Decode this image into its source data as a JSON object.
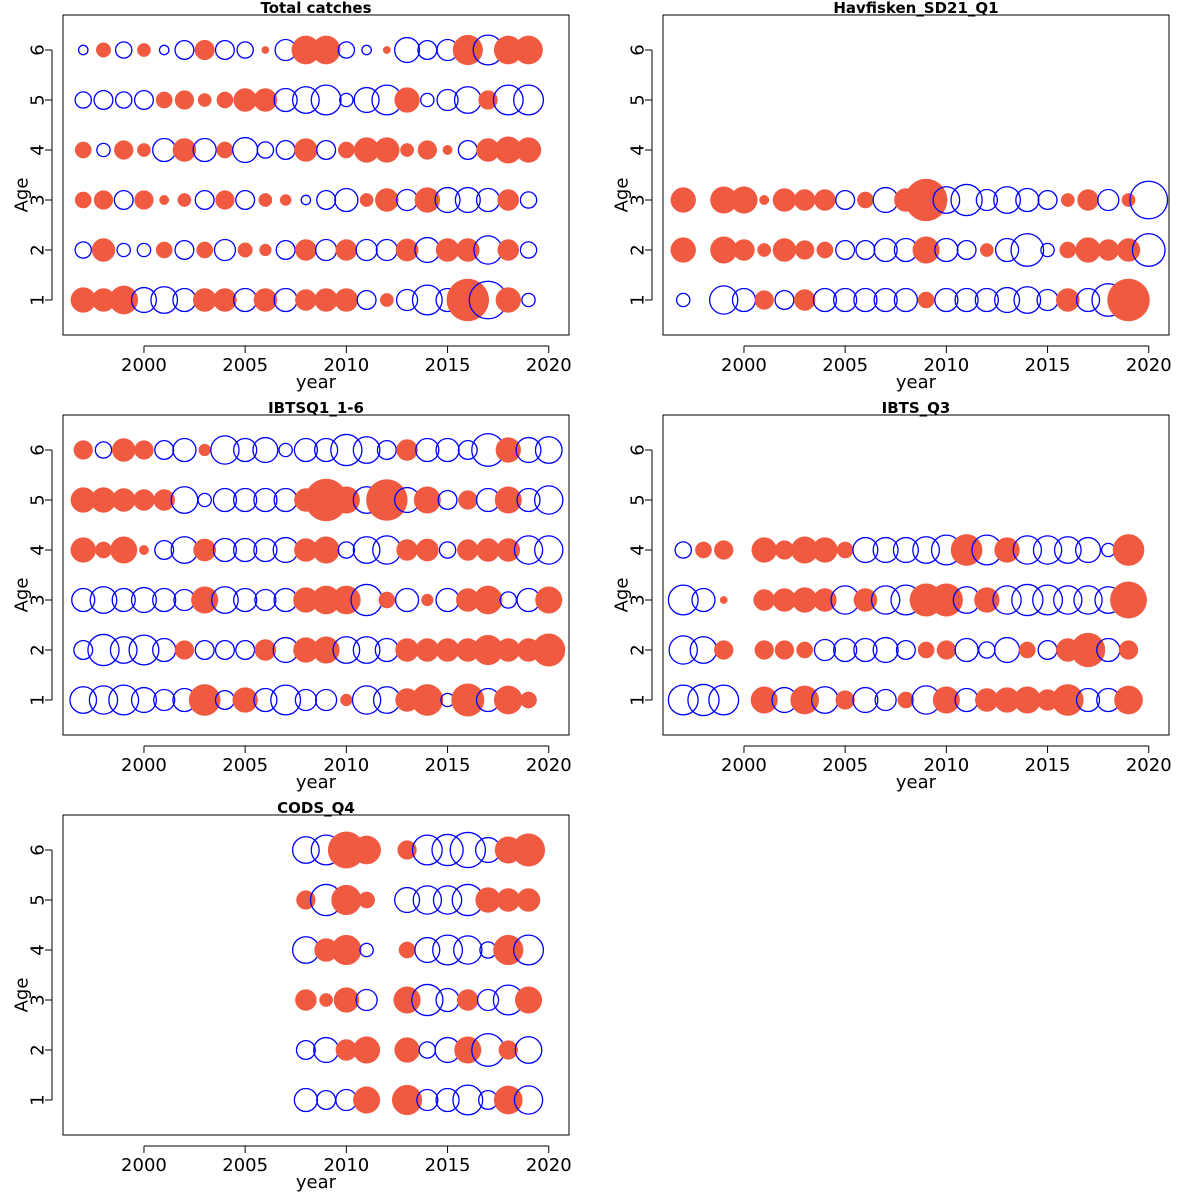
{
  "colors": {
    "positive": "#f05a40",
    "negative": "#0000ff"
  },
  "chart_data": [
    {
      "type": "scatter",
      "title": "Total catches",
      "xlabel": "year",
      "ylabel": "Age",
      "xlim": [
        1996,
        2021
      ],
      "ylim": [
        0.3,
        6.7
      ],
      "xticks": [
        2000,
        2005,
        2010,
        2015,
        2020
      ],
      "yticks": [
        1,
        2,
        3,
        4,
        5,
        6
      ],
      "years": [
        1997,
        1998,
        1999,
        2000,
        2001,
        2002,
        2003,
        2004,
        2005,
        2006,
        2007,
        2008,
        2009,
        2010,
        2011,
        2012,
        2013,
        2014,
        2015,
        2016,
        2017,
        2018,
        2019
      ],
      "residuals_by_age": {
        "1": [
          0.35,
          0.3,
          0.45,
          -0.35,
          -0.4,
          -0.3,
          0.3,
          0.3,
          -0.3,
          0.3,
          -0.3,
          0.25,
          0.3,
          0.3,
          -0.2,
          0.1,
          -0.25,
          -0.5,
          -0.3,
          1.0,
          -0.8,
          0.35,
          -0.1
        ],
        "2": [
          -0.15,
          0.3,
          -0.1,
          -0.1,
          0.15,
          -0.2,
          0.15,
          -0.25,
          0.12,
          0.08,
          -0.2,
          0.25,
          -0.25,
          0.25,
          -0.25,
          -0.25,
          0.28,
          -0.35,
          0.3,
          0.3,
          -0.45,
          0.25,
          -0.15
        ],
        "3": [
          0.15,
          0.2,
          -0.2,
          0.2,
          0.05,
          0.1,
          -0.2,
          0.2,
          -0.2,
          0.1,
          0.07,
          -0.05,
          -0.2,
          -0.3,
          0.1,
          0.3,
          -0.25,
          0.35,
          -0.35,
          -0.35,
          -0.3,
          0.25,
          -0.15
        ],
        "4": [
          0.15,
          -0.1,
          0.2,
          0.1,
          -0.3,
          0.3,
          -0.3,
          0.15,
          -0.35,
          -0.15,
          -0.2,
          0.3,
          -0.2,
          0.15,
          0.35,
          0.35,
          0.1,
          0.2,
          0.05,
          -0.2,
          0.3,
          0.4,
          0.35
        ],
        "5": [
          -0.15,
          -0.2,
          -0.15,
          -0.2,
          0.15,
          0.2,
          0.1,
          0.15,
          0.3,
          0.3,
          -0.3,
          -0.4,
          -0.5,
          -0.1,
          -0.35,
          -0.5,
          0.35,
          -0.1,
          -0.25,
          -0.4,
          0.2,
          -0.5,
          -0.5
        ],
        "6": [
          -0.05,
          0.12,
          -0.15,
          0.1,
          -0.05,
          -0.2,
          0.22,
          -0.2,
          -0.15,
          0.03,
          -0.25,
          0.45,
          0.45,
          -0.15,
          -0.05,
          0.03,
          -0.35,
          -0.2,
          -0.25,
          0.5,
          -0.5,
          0.45,
          0.45
        ]
      }
    },
    {
      "type": "scatter",
      "title": "Havfisken_SD21_Q1",
      "xlabel": "year",
      "ylabel": "Age",
      "xlim": [
        1996,
        2021
      ],
      "ylim": [
        0.3,
        6.7
      ],
      "xticks": [
        2000,
        2005,
        2010,
        2015,
        2020
      ],
      "yticks": [
        1,
        2,
        3,
        4,
        5,
        6
      ],
      "years": [
        1997,
        1999,
        2000,
        2001,
        2002,
        2003,
        2004,
        2005,
        2006,
        2007,
        2008,
        2009,
        2010,
        2011,
        2012,
        2013,
        2014,
        2015,
        2016,
        2017,
        2018,
        2019,
        2020
      ],
      "residuals_by_age": {
        "1": [
          -0.1,
          -0.45,
          -0.3,
          0.2,
          -0.2,
          0.25,
          -0.3,
          -0.3,
          -0.3,
          -0.3,
          -0.3,
          0.15,
          -0.3,
          -0.3,
          -0.3,
          -0.35,
          -0.4,
          -0.25,
          0.3,
          -0.3,
          -0.6,
          1.0,
          null
        ],
        "2": [
          0.35,
          0.4,
          0.25,
          0.1,
          0.3,
          0.2,
          0.15,
          -0.2,
          -0.2,
          -0.3,
          -0.3,
          0.4,
          -0.3,
          -0.2,
          0.1,
          -0.3,
          -0.6,
          -0.1,
          0.15,
          0.35,
          0.25,
          0.3,
          -0.6
        ],
        "3": [
          0.35,
          0.4,
          0.4,
          0.05,
          0.3,
          0.25,
          0.25,
          -0.2,
          0.15,
          -0.35,
          0.3,
          1.0,
          -0.4,
          -0.55,
          -0.25,
          -0.4,
          -0.3,
          -0.2,
          0.1,
          0.25,
          -0.25,
          0.1,
          -0.8
        ]
      }
    },
    {
      "type": "scatter",
      "title": "IBTSQ1_1-6",
      "xlabel": "year",
      "ylabel": "Age",
      "xlim": [
        1996,
        2021
      ],
      "ylim": [
        0.3,
        6.7
      ],
      "xticks": [
        2000,
        2005,
        2010,
        2015,
        2020
      ],
      "yticks": [
        1,
        2,
        3,
        4,
        5,
        6
      ],
      "years": [
        1997,
        1998,
        1999,
        2000,
        2001,
        2002,
        2003,
        2004,
        2005,
        2006,
        2007,
        2008,
        2009,
        2010,
        2011,
        2012,
        2013,
        2014,
        2015,
        2016,
        2017,
        2018,
        2019,
        2020
      ],
      "residuals_by_age": {
        "1": [
          -0.4,
          -0.45,
          -0.5,
          -0.35,
          -0.25,
          -0.3,
          0.55,
          -0.2,
          0.35,
          -0.3,
          -0.5,
          -0.25,
          -0.25,
          0.08,
          -0.45,
          -0.4,
          0.3,
          0.55,
          -0.1,
          0.6,
          -0.3,
          0.45,
          0.15,
          null
        ],
        "2": [
          -0.2,
          -0.55,
          -0.4,
          -0.5,
          -0.3,
          0.2,
          -0.2,
          -0.2,
          -0.2,
          0.25,
          -0.35,
          0.35,
          0.4,
          -0.4,
          -0.4,
          -0.3,
          0.3,
          0.3,
          0.3,
          0.3,
          0.5,
          0.3,
          0.3,
          0.6
        ],
        "3": [
          -0.3,
          -0.4,
          -0.3,
          -0.35,
          -0.3,
          -0.25,
          0.4,
          -0.4,
          -0.3,
          -0.25,
          -0.3,
          0.35,
          0.45,
          0.45,
          -0.55,
          0.15,
          -0.3,
          0.08,
          -0.3,
          0.3,
          0.45,
          -0.15,
          -0.3,
          0.4
        ],
        "4": [
          0.35,
          0.15,
          0.4,
          0.05,
          -0.2,
          -0.4,
          0.28,
          -0.3,
          -0.3,
          -0.3,
          -0.35,
          0.3,
          0.4,
          -0.15,
          -0.4,
          -0.45,
          0.25,
          0.28,
          -0.15,
          0.25,
          0.3,
          0.3,
          -0.45,
          -0.45
        ],
        "5": [
          0.35,
          0.35,
          0.3,
          0.25,
          0.25,
          -0.4,
          -0.1,
          -0.3,
          -0.3,
          -0.3,
          -0.3,
          0.3,
          1.0,
          0.4,
          -0.4,
          0.95,
          -0.35,
          0.4,
          -0.2,
          0.2,
          -0.3,
          0.4,
          -0.3,
          -0.45
        ],
        "6": [
          0.2,
          -0.15,
          0.3,
          0.2,
          -0.2,
          -0.3,
          0.08,
          -0.45,
          -0.3,
          -0.35,
          -0.1,
          -0.3,
          -0.3,
          -0.55,
          -0.4,
          -0.2,
          0.25,
          -0.3,
          -0.3,
          -0.2,
          -0.6,
          0.35,
          -0.35,
          -0.4
        ]
      }
    },
    {
      "type": "scatter",
      "title": "IBTS_Q3",
      "xlabel": "year",
      "ylabel": "Age",
      "xlim": [
        1996,
        2021
      ],
      "ylim": [
        0.3,
        6.7
      ],
      "xticks": [
        2000,
        2005,
        2010,
        2015,
        2020
      ],
      "yticks": [
        1,
        2,
        3,
        4,
        5,
        6
      ],
      "years": [
        1997,
        1998,
        1999,
        2001,
        2002,
        2003,
        2004,
        2005,
        2006,
        2007,
        2008,
        2009,
        2010,
        2011,
        2012,
        2013,
        2014,
        2015,
        2016,
        2017,
        2018,
        2019
      ],
      "residuals_by_age": {
        "1": [
          -0.5,
          -0.55,
          -0.5,
          0.4,
          -0.35,
          0.45,
          -0.4,
          0.2,
          -0.35,
          -0.25,
          0.15,
          -0.45,
          0.4,
          -0.3,
          0.3,
          0.35,
          0.4,
          0.25,
          0.55,
          -0.3,
          -0.3,
          0.45
        ],
        "2": [
          -0.45,
          -0.4,
          0.2,
          0.2,
          0.2,
          0.15,
          -0.25,
          -0.3,
          -0.3,
          -0.35,
          -0.2,
          0.15,
          0.2,
          -0.3,
          -0.15,
          -0.35,
          0.15,
          -0.2,
          0.3,
          0.65,
          -0.3,
          0.2
        ],
        "3": [
          -0.5,
          -0.3,
          0.03,
          0.25,
          0.3,
          0.35,
          0.3,
          -0.45,
          0.3,
          -0.45,
          -0.5,
          0.6,
          0.6,
          -0.4,
          0.35,
          -0.45,
          -0.55,
          -0.5,
          -0.45,
          -0.45,
          -0.4,
          0.75
        ],
        "4": [
          -0.15,
          0.15,
          0.2,
          0.35,
          0.2,
          0.4,
          0.35,
          0.15,
          -0.35,
          -0.35,
          -0.35,
          -0.4,
          -0.5,
          0.55,
          -0.5,
          0.35,
          -0.45,
          -0.45,
          -0.4,
          -0.35,
          -0.1,
          0.55
        ]
      }
    },
    {
      "type": "scatter",
      "title": "CODS_Q4",
      "xlabel": "year",
      "ylabel": "Age",
      "xlim": [
        1996,
        2021
      ],
      "ylim": [
        0.3,
        6.7
      ],
      "xticks": [
        2000,
        2005,
        2010,
        2015,
        2020
      ],
      "yticks": [
        1,
        2,
        3,
        4,
        5,
        6
      ],
      "years": [
        2008,
        2009,
        2010,
        2011,
        2013,
        2014,
        2015,
        2016,
        2017,
        2018,
        2019
      ],
      "residuals_by_age": {
        "1": [
          -0.3,
          -0.2,
          -0.25,
          0.4,
          0.5,
          -0.25,
          -0.3,
          -0.5,
          -0.2,
          0.45,
          -0.45
        ],
        "2": [
          -0.2,
          -0.35,
          0.25,
          0.4,
          0.35,
          -0.15,
          -0.35,
          0.4,
          -0.6,
          0.2,
          -0.4
        ],
        "3": [
          0.25,
          0.1,
          0.35,
          -0.25,
          0.4,
          -0.55,
          -0.3,
          0.25,
          -0.25,
          -0.5,
          0.4
        ],
        "4": [
          -0.4,
          0.3,
          0.5,
          -0.1,
          0.15,
          -0.35,
          -0.5,
          -0.45,
          -0.15,
          0.5,
          -0.5
        ],
        "5": [
          0.2,
          -0.55,
          0.5,
          0.15,
          -0.35,
          -0.45,
          -0.45,
          -0.55,
          0.35,
          0.3,
          0.3
        ],
        "6": [
          -0.4,
          -0.5,
          0.75,
          0.45,
          0.2,
          -0.5,
          -0.55,
          -0.7,
          -0.35,
          0.4,
          0.6
        ]
      }
    }
  ]
}
